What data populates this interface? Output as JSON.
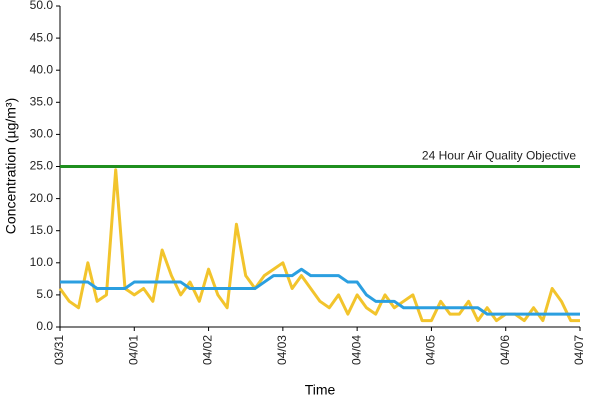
{
  "chart_data": {
    "type": "line",
    "ylabel": "Concentration (µg/m³)",
    "xlabel": "Time",
    "categories": [
      "03/31",
      null,
      null,
      null,
      null,
      null,
      null,
      null,
      "04/01",
      null,
      null,
      null,
      null,
      null,
      null,
      null,
      "04/02",
      null,
      null,
      null,
      null,
      null,
      null,
      null,
      "04/03",
      null,
      null,
      null,
      null,
      null,
      null,
      null,
      "04/04",
      null,
      null,
      null,
      null,
      null,
      null,
      null,
      "04/05",
      null,
      null,
      null,
      null,
      null,
      null,
      null,
      "04/06",
      null,
      null,
      null,
      null,
      null,
      null,
      null,
      "04/07"
    ],
    "series": [
      {
        "color": "#f2c42c",
        "values": [
          6,
          4,
          3,
          10,
          4,
          5,
          24.5,
          6,
          5,
          6,
          4,
          12,
          8,
          5,
          7,
          4,
          9,
          5,
          3,
          16,
          8,
          6,
          8,
          9,
          10,
          6,
          8,
          6,
          4,
          3,
          5,
          2,
          5,
          3,
          2,
          5,
          3,
          4,
          5,
          1,
          1,
          4,
          2,
          2,
          4,
          1,
          3,
          1,
          2,
          2,
          1,
          3,
          1,
          6,
          4,
          1,
          1
        ]
      },
      {
        "color": "#2b9fe0",
        "values": [
          7,
          7,
          7,
          7,
          6,
          6,
          6,
          6,
          7,
          7,
          7,
          7,
          7,
          7,
          6,
          6,
          6,
          6,
          6,
          6,
          6,
          6,
          7,
          8,
          8,
          8,
          9,
          8,
          8,
          8,
          8,
          7,
          7,
          5,
          4,
          4,
          4,
          3,
          3,
          3,
          3,
          3,
          3,
          3,
          3,
          3,
          2,
          2,
          2,
          2,
          2,
          2,
          2,
          2,
          2,
          2,
          2
        ]
      }
    ],
    "objective": {
      "value": 25,
      "label": "24 Hour Air Quality Objective",
      "color": "#1f8f1f"
    },
    "ylim": [
      0,
      50
    ],
    "yticks": [
      {
        "value": 0,
        "label": "0.0"
      },
      {
        "value": 5,
        "label": "5.0"
      },
      {
        "value": 10,
        "label": "10.0"
      },
      {
        "value": 15,
        "label": "15.0"
      },
      {
        "value": 20,
        "label": "20.0"
      },
      {
        "value": 25,
        "label": "25.0"
      },
      {
        "value": 30,
        "label": "30.0"
      },
      {
        "value": 35,
        "label": "35.0"
      },
      {
        "value": 40,
        "label": "40.0"
      },
      {
        "value": 45,
        "label": "45.0"
      },
      {
        "value": 50,
        "label": "50.0"
      }
    ],
    "grid": false
  }
}
